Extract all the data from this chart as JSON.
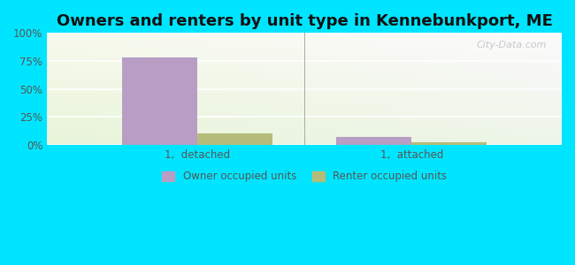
{
  "title": "Owners and renters by unit type in Kennebunkport, ME",
  "categories": [
    "1,  detached",
    "1,  attached"
  ],
  "owner_values": [
    78.0,
    7.0
  ],
  "renter_values": [
    10.0,
    2.0
  ],
  "owner_color": "#b89ec4",
  "renter_color": "#b5bc7a",
  "background_color": "#00e5ff",
  "yticks": [
    0,
    25,
    50,
    75,
    100
  ],
  "ylim": [
    0,
    100
  ],
  "bar_width": 0.35,
  "title_fontsize": 13,
  "legend_labels": [
    "Owner occupied units",
    "Renter occupied units"
  ],
  "watermark": "City-Data.com"
}
